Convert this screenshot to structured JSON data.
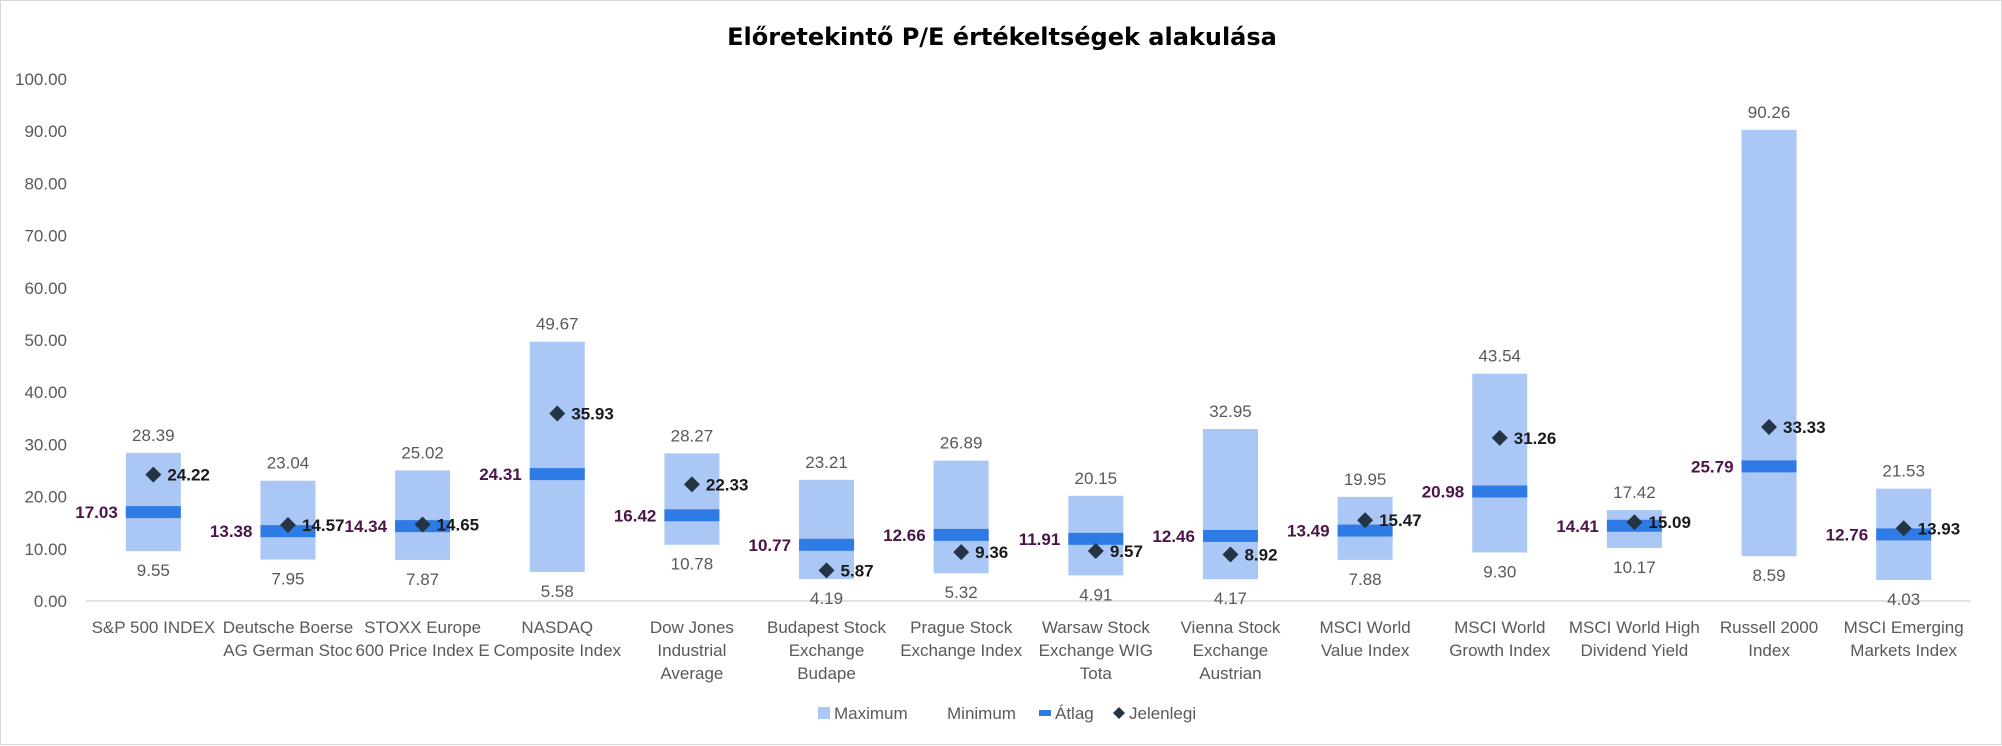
{
  "chart_data": {
    "type": "bar",
    "title": "Előretekintő P/E értékeltségek alakulása",
    "ylim": [
      0,
      100
    ],
    "yticks": [
      "0.00",
      "10.00",
      "20.00",
      "30.00",
      "40.00",
      "50.00",
      "60.00",
      "70.00",
      "80.00",
      "90.00",
      "100.00"
    ],
    "grid": false,
    "legend_position": "bottom",
    "categories": [
      [
        "S&P 500 INDEX"
      ],
      [
        "Deutsche Boerse",
        "AG German Stoc"
      ],
      [
        "STOXX Europe",
        "600 Price Index E"
      ],
      [
        "NASDAQ",
        "Composite Index"
      ],
      [
        "Dow Jones",
        "Industrial",
        "Average"
      ],
      [
        "Budapest Stock",
        "Exchange",
        "Budape"
      ],
      [
        "Prague Stock",
        "Exchange Index"
      ],
      [
        "Warsaw Stock",
        "Exchange WIG",
        "Tota"
      ],
      [
        "Vienna Stock",
        "Exchange",
        "Austrian"
      ],
      [
        "MSCI World",
        "Value Index"
      ],
      [
        "MSCI World",
        "Growth Index"
      ],
      [
        "MSCI World High",
        "Dividend Yield"
      ],
      [
        "Russell 2000",
        "Index"
      ],
      [
        "MSCI Emerging",
        "Markets Index"
      ]
    ],
    "series": [
      {
        "name": "Maximum",
        "values": [
          28.39,
          23.04,
          25.02,
          49.67,
          28.27,
          23.21,
          26.89,
          20.15,
          32.95,
          19.95,
          43.54,
          17.42,
          90.26,
          21.53
        ],
        "labels": [
          "28.39",
          "23.04",
          "25.02",
          "49.67",
          "28.27",
          "23.21",
          "26.89",
          "20.15",
          "32.95",
          "19.95",
          "43.54",
          "17.42",
          "90.26",
          "21.53"
        ]
      },
      {
        "name": "Minimum",
        "values": [
          9.55,
          7.95,
          7.87,
          5.58,
          10.78,
          4.19,
          5.32,
          4.91,
          4.17,
          7.88,
          9.3,
          10.17,
          8.59,
          4.03
        ],
        "labels": [
          "9.55",
          "7.95",
          "7.87",
          "5.58",
          "10.78",
          "4.19",
          "5.32",
          "4.91",
          "4.17",
          "7.88",
          "9.30",
          "10.17",
          "8.59",
          "4.03"
        ]
      },
      {
        "name": "Átlag",
        "values": [
          17.03,
          13.38,
          14.34,
          24.31,
          16.42,
          10.77,
          12.66,
          11.91,
          12.46,
          13.49,
          20.98,
          14.41,
          25.79,
          12.76
        ],
        "labels": [
          "17.03",
          "13.38",
          "14.34",
          "24.31",
          "16.42",
          "10.77",
          "12.66",
          "11.91",
          "12.46",
          "13.49",
          "20.98",
          "14.41",
          "25.79",
          "12.76"
        ]
      },
      {
        "name": "Jelenlegi",
        "values": [
          24.22,
          14.57,
          14.65,
          35.93,
          22.33,
          5.87,
          9.36,
          9.57,
          8.92,
          15.47,
          31.26,
          15.09,
          33.33,
          13.93
        ],
        "labels": [
          "24.22",
          "14.57",
          "14.65",
          "35.93",
          "22.33",
          "5.87",
          "9.36",
          "9.57",
          "8.92",
          "15.47",
          "31.26",
          "15.09",
          "33.33",
          "13.93"
        ]
      }
    ],
    "colors": {
      "range_bar": "#abc7f6",
      "average_line": "#2f7be6",
      "current_marker": "#243444",
      "average_label": "#4b1548",
      "axis_text": "#595959"
    }
  }
}
